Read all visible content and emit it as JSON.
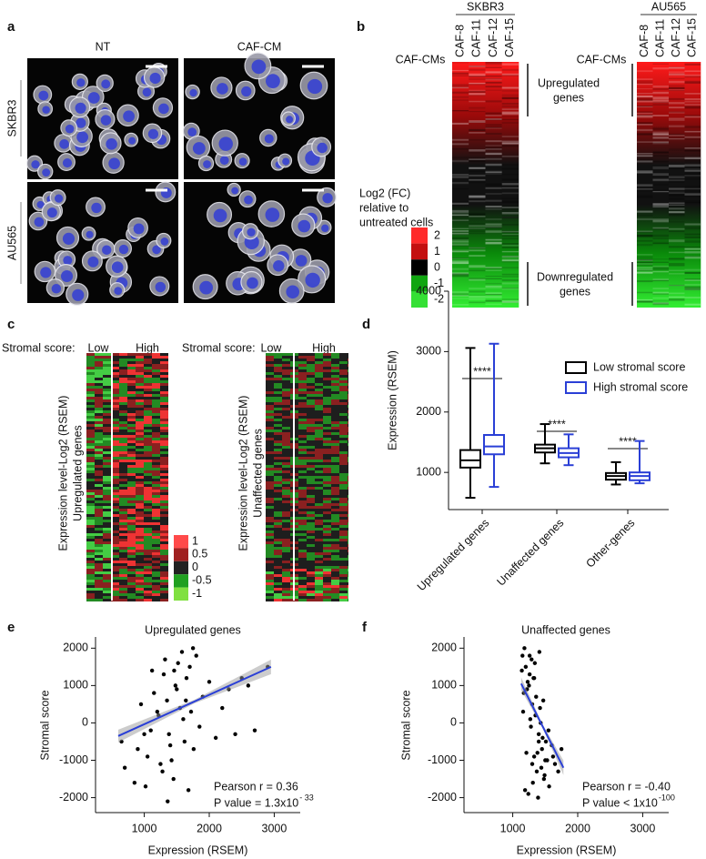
{
  "panel_a": {
    "label": "a",
    "columns": [
      "NT",
      "CAF-CM"
    ],
    "rows": [
      "SKBR3",
      "AU565"
    ]
  },
  "panel_b": {
    "label": "b",
    "cell_lines": [
      "SKBR3",
      "AU565"
    ],
    "row_label": "CAF-CMs",
    "columns": [
      "CAF-8",
      "CAF-11",
      "CAF-12",
      "CAF-15"
    ],
    "colorbar_title": [
      "Log2 (FC)",
      "relative to",
      "untreated cells"
    ],
    "colorbar_labels": [
      2,
      1,
      0,
      -1,
      -2
    ],
    "annotations": {
      "upregulated": [
        "Upregulated",
        "genes"
      ],
      "downregulated": [
        "Downregulated",
        "genes"
      ]
    }
  },
  "panel_c": {
    "label": "c",
    "score_label": "Stromal score:",
    "groups": [
      "Low",
      "High"
    ],
    "heatmaps": [
      {
        "ylabel": [
          "Expression level-Log2 (RSEM)",
          "Upregulated genes"
        ]
      },
      {
        "ylabel": [
          "Expression level-Log2 (RSEM)",
          "Unaffected genes"
        ]
      }
    ],
    "colorbar_labels": [
      1,
      0.5,
      0,
      -0.5,
      -1
    ]
  },
  "chart_data": [
    {
      "type": "box",
      "label": "d",
      "ylabel": "Expression (RSEM)",
      "categories": [
        "Upregulated genes",
        "Unaffected genes",
        "Other-genes"
      ],
      "series": [
        {
          "name": "Low stromal score",
          "color": "#000000",
          "values": [
            [
              580,
              1080,
              1200,
              1370,
              3060
            ],
            [
              1150,
              1330,
              1400,
              1460,
              1800
            ],
            [
              800,
              880,
              940,
              990,
              1170
            ]
          ]
        },
        {
          "name": "High stromal score",
          "color": "#2a3fd6",
          "values": [
            [
              760,
              1300,
              1430,
              1620,
              3130
            ],
            [
              1120,
              1250,
              1320,
              1400,
              1630
            ],
            [
              820,
              870,
              940,
              1000,
              1520
            ]
          ]
        }
      ],
      "annotations": [
        "****",
        "****",
        "****"
      ],
      "ylim": [
        400,
        4000
      ],
      "yticks": [
        1000,
        2000,
        3000,
        4000
      ]
    },
    {
      "type": "scatter",
      "label": "e",
      "title": "Upregulated genes",
      "xlabel": "Expression (RSEM)",
      "ylabel": "Stromal score",
      "x": [
        1200,
        1350,
        1500,
        1650,
        1100,
        1400,
        1700,
        1250,
        1550,
        1800,
        900,
        1000,
        1300,
        1450,
        1600,
        1750,
        1150,
        1050,
        1900,
        2000,
        2100,
        2300,
        2500,
        2700,
        2900,
        850,
        950,
        1380,
        1520,
        1680,
        1220,
        1420,
        1620,
        1320,
        1480,
        1720,
        1280,
        1580,
        700,
        650,
        1850,
        2200,
        1120,
        1360,
        1640,
        1760,
        1460,
        2400,
        2600,
        1020
      ],
      "y": [
        300,
        600,
        900,
        1200,
        -200,
        -600,
        1500,
        -1100,
        400,
        1800,
        -700,
        -300,
        1300,
        -1500,
        100,
        2000,
        800,
        -900,
        700,
        1100,
        -400,
        900,
        1200,
        -200,
        1500,
        -1600,
        500,
        -300,
        1600,
        -1800,
        200,
        -1000,
        -500,
        1700,
        1000,
        300,
        -1300,
        1900,
        -1200,
        -500,
        -100,
        400,
        1400,
        -2100,
        600,
        -700,
        1400,
        -300,
        1000,
        -1700
      ],
      "color": "#000000",
      "fit": {
        "x": [
          600,
          2950
        ],
        "y": [
          -350,
          1500
        ],
        "color": "#2a3fd6"
      },
      "stat_label": "Pearson r = 0.36",
      "p_label": "P value = 1.3x10",
      "p_exponent": "- 33",
      "xlim": [
        250,
        3400
      ],
      "ylim": [
        -2400,
        2300
      ],
      "xticks": [
        1000,
        2000,
        3000
      ],
      "yticks": [
        2000,
        1000,
        0,
        -1000,
        -2000
      ]
    },
    {
      "type": "scatter",
      "label": "f",
      "title": "Unaffected genes",
      "xlabel": "Expression (RSEM)",
      "ylabel": "Stromal score",
      "x": [
        1150,
        1200,
        1250,
        1300,
        1350,
        1400,
        1450,
        1500,
        1180,
        1220,
        1280,
        1320,
        1380,
        1420,
        1480,
        1550,
        1600,
        1650,
        1700,
        1160,
        1240,
        1340,
        1440,
        1260,
        1360,
        1460,
        1210,
        1310,
        1410,
        1510,
        1170,
        1270,
        1370,
        1470,
        1190,
        1290,
        1390,
        1490,
        1230,
        1330,
        1430,
        1530,
        1750,
        1140,
        1560,
        1620,
        1330,
        1260,
        1400,
        1300
      ],
      "y": [
        1800,
        1500,
        1000,
        500,
        200,
        -300,
        -700,
        -1000,
        2000,
        900,
        -100,
        1200,
        -800,
        400,
        -1500,
        -200,
        -600,
        -1100,
        -1300,
        300,
        -1900,
        1600,
        -1200,
        1300,
        700,
        -400,
        -800,
        -1600,
        1900,
        -500,
        800,
        100,
        -1300,
        600,
        -1800,
        1700,
        -2000,
        -1400,
        1100,
        -900,
        0,
        -1000,
        -700,
        1400,
        -1700,
        -900,
        1200,
        1800,
        -500,
        -1100
      ],
      "color": "#000000",
      "fit": {
        "x": [
          1130,
          1780
        ],
        "y": [
          1050,
          -1200
        ],
        "color": "#2a3fd6"
      },
      "stat_label": "Pearson r = -0.40",
      "p_label": "P value < 1x10",
      "p_exponent": "-100",
      "xlim": [
        250,
        3400
      ],
      "ylim": [
        -2400,
        2300
      ],
      "xticks": [
        1000,
        2000,
        3000
      ],
      "yticks": [
        2000,
        1000,
        0,
        -1000,
        -2000
      ]
    }
  ]
}
